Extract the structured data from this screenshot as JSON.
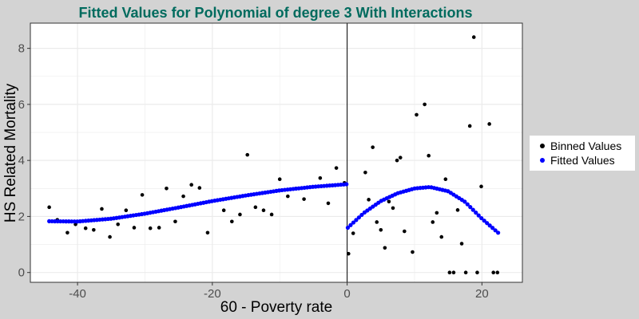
{
  "chart_data": {
    "type": "scatter",
    "title": "Fitted Values for Polynomial of degree 3 With Interactions",
    "xlabel": "60 - Poverty rate",
    "ylabel": "HS Related Mortality",
    "xlim": [
      -47,
      26
    ],
    "ylim": [
      -0.35,
      8.9
    ],
    "x_ticks": [
      -40,
      -20,
      0,
      20
    ],
    "y_ticks": [
      0,
      2,
      4,
      6,
      8
    ],
    "grid": true,
    "cutoff_line": 0,
    "legend": {
      "placement": "right",
      "entries": [
        "Binned Values",
        "Fitted Values"
      ]
    },
    "colors": {
      "title": "#006b5e",
      "binned": "#000000",
      "fitted": "#0000ff",
      "background": "#d3d3d3",
      "panel": "#ffffff",
      "grid": "#ebebeb"
    },
    "series": [
      {
        "name": "Binned Values",
        "points": [
          [
            -44.2,
            2.33
          ],
          [
            -43.0,
            1.88
          ],
          [
            -41.5,
            1.42
          ],
          [
            -40.3,
            1.72
          ],
          [
            -38.8,
            1.58
          ],
          [
            -37.6,
            1.52
          ],
          [
            -36.4,
            2.27
          ],
          [
            -35.2,
            1.27
          ],
          [
            -34.0,
            1.72
          ],
          [
            -32.8,
            2.22
          ],
          [
            -31.6,
            1.6
          ],
          [
            -30.4,
            2.77
          ],
          [
            -29.2,
            1.58
          ],
          [
            -27.9,
            1.6
          ],
          [
            -26.8,
            3.0
          ],
          [
            -25.5,
            1.82
          ],
          [
            -24.3,
            2.72
          ],
          [
            -23.1,
            3.13
          ],
          [
            -21.9,
            3.02
          ],
          [
            -20.7,
            1.42
          ],
          [
            -18.3,
            2.22
          ],
          [
            -17.1,
            1.82
          ],
          [
            -15.9,
            2.07
          ],
          [
            -14.8,
            4.2
          ],
          [
            -13.6,
            2.33
          ],
          [
            -12.4,
            2.22
          ],
          [
            -11.2,
            2.07
          ],
          [
            -10.0,
            3.33
          ],
          [
            -8.8,
            2.72
          ],
          [
            -7.6,
            3.0
          ],
          [
            -6.4,
            2.62
          ],
          [
            -4.0,
            3.37
          ],
          [
            -2.8,
            2.47
          ],
          [
            -1.6,
            3.73
          ],
          [
            -0.4,
            3.2
          ],
          [
            0.2,
            0.67
          ],
          [
            0.9,
            1.4
          ],
          [
            2.7,
            3.57
          ],
          [
            3.2,
            2.6
          ],
          [
            3.8,
            4.47
          ],
          [
            4.4,
            1.8
          ],
          [
            5.0,
            1.52
          ],
          [
            5.6,
            0.88
          ],
          [
            6.2,
            2.53
          ],
          [
            6.8,
            2.3
          ],
          [
            7.4,
            4.0
          ],
          [
            7.9,
            4.1
          ],
          [
            8.5,
            1.47
          ],
          [
            9.7,
            0.73
          ],
          [
            10.3,
            5.63
          ],
          [
            11.5,
            6.0
          ],
          [
            12.1,
            4.17
          ],
          [
            12.7,
            1.8
          ],
          [
            13.3,
            2.13
          ],
          [
            14.0,
            1.27
          ],
          [
            14.6,
            3.33
          ],
          [
            15.2,
            0.0
          ],
          [
            15.8,
            0.0
          ],
          [
            16.4,
            2.23
          ],
          [
            17.0,
            1.03
          ],
          [
            17.6,
            0.0
          ],
          [
            18.2,
            5.23
          ],
          [
            18.8,
            8.4
          ],
          [
            19.3,
            0.0
          ],
          [
            19.9,
            3.07
          ],
          [
            21.1,
            5.3
          ],
          [
            21.7,
            0.0
          ],
          [
            22.3,
            0.0
          ]
        ]
      },
      {
        "name": "Fitted Values",
        "left_segment": {
          "x_range": [
            -44.2,
            -0.1
          ],
          "points": [
            [
              -44.2,
              1.83
            ],
            [
              -40,
              1.82
            ],
            [
              -35,
              1.92
            ],
            [
              -30,
              2.1
            ],
            [
              -25,
              2.32
            ],
            [
              -20,
              2.55
            ],
            [
              -15,
              2.75
            ],
            [
              -10,
              2.93
            ],
            [
              -5,
              3.06
            ],
            [
              -0.1,
              3.15
            ]
          ]
        },
        "right_segment": {
          "x_range": [
            0.1,
            22.4
          ],
          "points": [
            [
              0.1,
              1.6
            ],
            [
              2.5,
              2.13
            ],
            [
              5,
              2.55
            ],
            [
              7.5,
              2.83
            ],
            [
              10,
              3.0
            ],
            [
              12.3,
              3.05
            ],
            [
              15,
              2.9
            ],
            [
              17.5,
              2.52
            ],
            [
              20,
              1.92
            ],
            [
              22.4,
              1.42
            ]
          ]
        }
      }
    ]
  }
}
